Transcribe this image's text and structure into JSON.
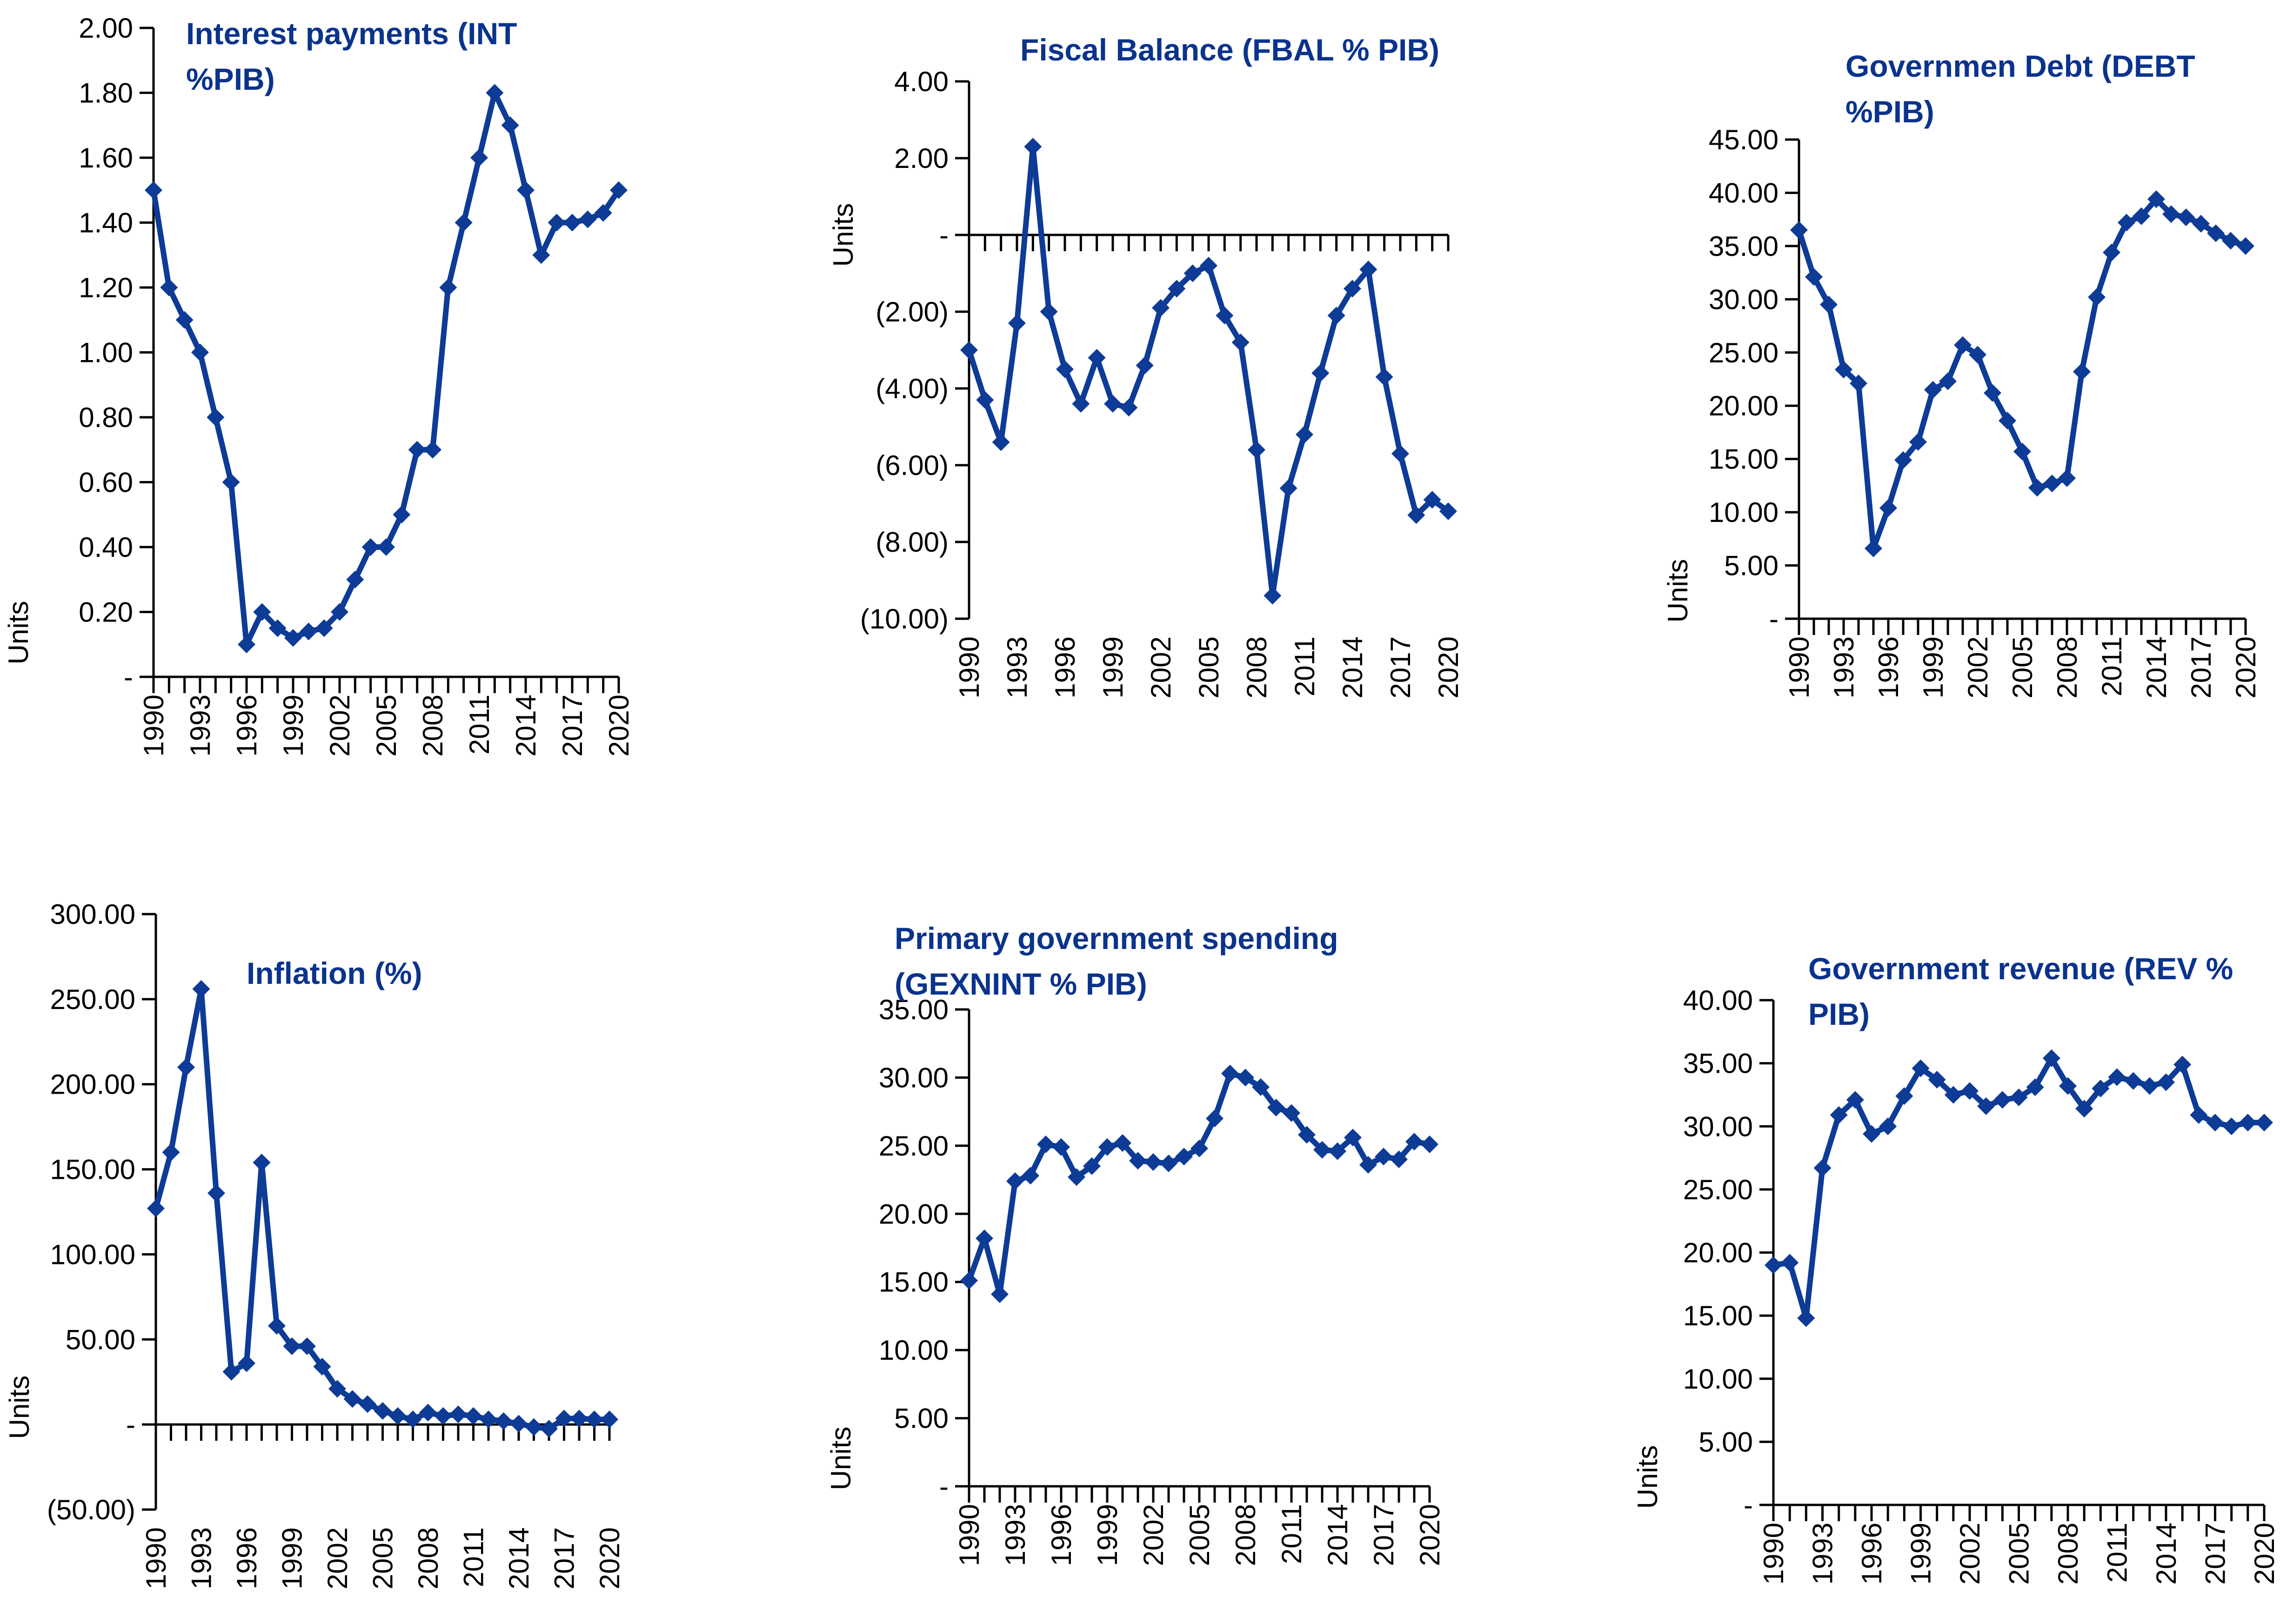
{
  "page": {
    "background": "#ffffff"
  },
  "colors": {
    "line": "#0d3b96",
    "title": "#0a338c",
    "axis": "#000000",
    "text": "#000000"
  },
  "units_label": "Units",
  "years": [
    1990,
    1991,
    1992,
    1993,
    1994,
    1995,
    1996,
    1997,
    1998,
    1999,
    2000,
    2001,
    2002,
    2003,
    2004,
    2005,
    2006,
    2007,
    2008,
    2009,
    2010,
    2011,
    2012,
    2013,
    2014,
    2015,
    2016,
    2017,
    2018,
    2019,
    2020
  ],
  "x_tick_labels": [
    "1990",
    "1993",
    "1996",
    "1999",
    "2002",
    "2005",
    "2008",
    "2011",
    "2014",
    "2017",
    "2020"
  ],
  "chart_data": [
    {
      "type": "line",
      "id": "interest-payments",
      "title": "Interest payments (INT %PIB)",
      "title_lines": [
        "Interest payments (INT",
        "%PIB)"
      ],
      "ylabel": "Units",
      "xlabel": "",
      "ylim": [
        0,
        2
      ],
      "grid": false,
      "legend": "none",
      "marker": "diamond",
      "y_ticks": [
        {
          "v": 2.0,
          "label": "2.00"
        },
        {
          "v": 1.8,
          "label": "1.80"
        },
        {
          "v": 1.6,
          "label": "1.60"
        },
        {
          "v": 1.4,
          "label": "1.40"
        },
        {
          "v": 1.2,
          "label": "1.20"
        },
        {
          "v": 1.0,
          "label": "1.00"
        },
        {
          "v": 0.8,
          "label": "0.80"
        },
        {
          "v": 0.6,
          "label": "0.60"
        },
        {
          "v": 0.4,
          "label": "0.40"
        },
        {
          "v": 0.2,
          "label": "0.20"
        },
        {
          "v": 0.0,
          "label": "-"
        }
      ],
      "values": [
        1.5,
        1.2,
        1.1,
        1.0,
        0.8,
        0.6,
        0.1,
        0.2,
        0.15,
        0.12,
        0.14,
        0.15,
        0.2,
        0.3,
        0.4,
        0.4,
        0.5,
        0.7,
        0.7,
        1.2,
        1.4,
        1.6,
        1.8,
        1.7,
        1.5,
        1.3,
        1.4,
        1.4,
        1.41,
        1.43,
        1.5
      ]
    },
    {
      "type": "line",
      "id": "fiscal-balance",
      "title": "Fiscal Balance (FBAL % PIB)",
      "title_lines": [
        "Fiscal Balance (FBAL % PIB)"
      ],
      "ylabel": "Units",
      "xlabel": "",
      "ylim": [
        -10,
        4
      ],
      "grid": false,
      "legend": "none",
      "marker": "diamond",
      "y_ticks": [
        {
          "v": 4,
          "label": "4.00"
        },
        {
          "v": 2,
          "label": "2.00"
        },
        {
          "v": 0,
          "label": "-"
        },
        {
          "v": -2,
          "label": "(2.00)"
        },
        {
          "v": -4,
          "label": "(4.00)"
        },
        {
          "v": -6,
          "label": "(6.00)"
        },
        {
          "v": -8,
          "label": "(8.00)"
        },
        {
          "v": -10,
          "label": "(10.00)"
        }
      ],
      "values": [
        -3.0,
        -4.3,
        -5.4,
        -2.3,
        2.3,
        -2.0,
        -3.5,
        -4.4,
        -3.2,
        -4.4,
        -4.5,
        -3.4,
        -1.9,
        -1.4,
        -1.0,
        -0.8,
        -2.1,
        -2.8,
        -5.6,
        -9.4,
        -6.6,
        -5.2,
        -3.6,
        -2.1,
        -1.4,
        -0.9,
        -3.7,
        -5.7,
        -7.3,
        -6.9,
        -7.2
      ]
    },
    {
      "type": "line",
      "id": "government-debt",
      "title": "Governmen Debt (DEBT %PIB)",
      "title_lines": [
        "Governmen Debt (DEBT",
        "%PIB)"
      ],
      "ylabel": "Units",
      "xlabel": "",
      "ylim": [
        0,
        45
      ],
      "grid": false,
      "legend": "none",
      "marker": "diamond",
      "y_ticks": [
        {
          "v": 45,
          "label": "45.00"
        },
        {
          "v": 40,
          "label": "40.00"
        },
        {
          "v": 35,
          "label": "35.00"
        },
        {
          "v": 30,
          "label": "30.00"
        },
        {
          "v": 25,
          "label": "25.00"
        },
        {
          "v": 20,
          "label": "20.00"
        },
        {
          "v": 15,
          "label": "15.00"
        },
        {
          "v": 10,
          "label": "10.00"
        },
        {
          "v": 5,
          "label": "5.00"
        },
        {
          "v": 0,
          "label": "-"
        }
      ],
      "values": [
        36.5,
        32.1,
        29.5,
        23.4,
        22.1,
        6.6,
        10.4,
        14.9,
        16.6,
        21.5,
        22.3,
        25.7,
        24.8,
        21.2,
        18.6,
        15.7,
        12.3,
        12.7,
        13.2,
        23.2,
        30.2,
        34.4,
        37.2,
        37.8,
        39.4,
        38.0,
        37.7,
        37.1,
        36.2,
        35.5,
        35.0
      ]
    },
    {
      "type": "line",
      "id": "inflation",
      "title": "Inflation (%)",
      "title_lines": [
        "Inflation (%)"
      ],
      "ylabel": "Units",
      "xlabel": "",
      "ylim": [
        -50,
        300
      ],
      "grid": false,
      "legend": "none",
      "marker": "diamond",
      "y_ticks": [
        {
          "v": 300,
          "label": "300.00"
        },
        {
          "v": 250,
          "label": "250.00"
        },
        {
          "v": 200,
          "label": "200.00"
        },
        {
          "v": 150,
          "label": "150.00"
        },
        {
          "v": 100,
          "label": "100.00"
        },
        {
          "v": 50,
          "label": "50.00"
        },
        {
          "v": 0,
          "label": "-"
        },
        {
          "v": -50,
          "label": "(50.00)"
        }
      ],
      "values": [
        127,
        160,
        210,
        256,
        136,
        31,
        36,
        154,
        58,
        46,
        46,
        34,
        21,
        15,
        12,
        8,
        5,
        3,
        7,
        5,
        6,
        5,
        3,
        2,
        0.5,
        -1.5,
        -2.5,
        3.5,
        3.5,
        3,
        3
      ]
    },
    {
      "type": "line",
      "id": "primary-government-spending",
      "title": "Primary government spending (GEXNINT % PIB)",
      "title_lines": [
        "Primary government spending",
        "(GEXNINT % PIB)"
      ],
      "ylabel": "Units",
      "xlabel": "",
      "ylim": [
        0,
        35
      ],
      "grid": false,
      "legend": "none",
      "marker": "diamond",
      "y_ticks": [
        {
          "v": 35,
          "label": "35.00"
        },
        {
          "v": 30,
          "label": "30.00"
        },
        {
          "v": 25,
          "label": "25.00"
        },
        {
          "v": 20,
          "label": "20.00"
        },
        {
          "v": 15,
          "label": "15.00"
        },
        {
          "v": 10,
          "label": "10.00"
        },
        {
          "v": 5,
          "label": "5.00"
        },
        {
          "v": 0,
          "label": "-"
        }
      ],
      "values": [
        15.1,
        18.2,
        14.1,
        22.4,
        22.8,
        25.1,
        24.9,
        22.7,
        23.5,
        24.9,
        25.2,
        23.9,
        23.8,
        23.7,
        24.2,
        24.8,
        27.0,
        30.3,
        30.0,
        29.3,
        27.8,
        27.4,
        25.8,
        24.7,
        24.6,
        25.6,
        23.6,
        24.2,
        24.0,
        25.3,
        25.1
      ]
    },
    {
      "type": "line",
      "id": "government-revenue",
      "title": "Government revenue (REV % PIB)",
      "title_lines": [
        "Government revenue (REV %",
        "PIB)"
      ],
      "ylabel": "Units",
      "xlabel": "",
      "ylim": [
        0,
        40
      ],
      "grid": false,
      "legend": "none",
      "marker": "diamond",
      "y_ticks": [
        {
          "v": 40,
          "label": "40.00"
        },
        {
          "v": 35,
          "label": "35.00"
        },
        {
          "v": 30,
          "label": "30.00"
        },
        {
          "v": 25,
          "label": "25.00"
        },
        {
          "v": 20,
          "label": "20.00"
        },
        {
          "v": 15,
          "label": "15.00"
        },
        {
          "v": 10,
          "label": "10.00"
        },
        {
          "v": 5,
          "label": "5.00"
        },
        {
          "v": 0,
          "label": "-"
        }
      ],
      "values": [
        19.0,
        19.2,
        14.8,
        26.7,
        30.9,
        32.1,
        29.4,
        30.0,
        32.4,
        34.6,
        33.7,
        32.5,
        32.8,
        31.6,
        32.1,
        32.3,
        33.1,
        35.4,
        33.2,
        31.4,
        33.0,
        33.9,
        33.6,
        33.2,
        33.5,
        34.9,
        30.9,
        30.3,
        30.0,
        30.3,
        30.3
      ]
    }
  ]
}
